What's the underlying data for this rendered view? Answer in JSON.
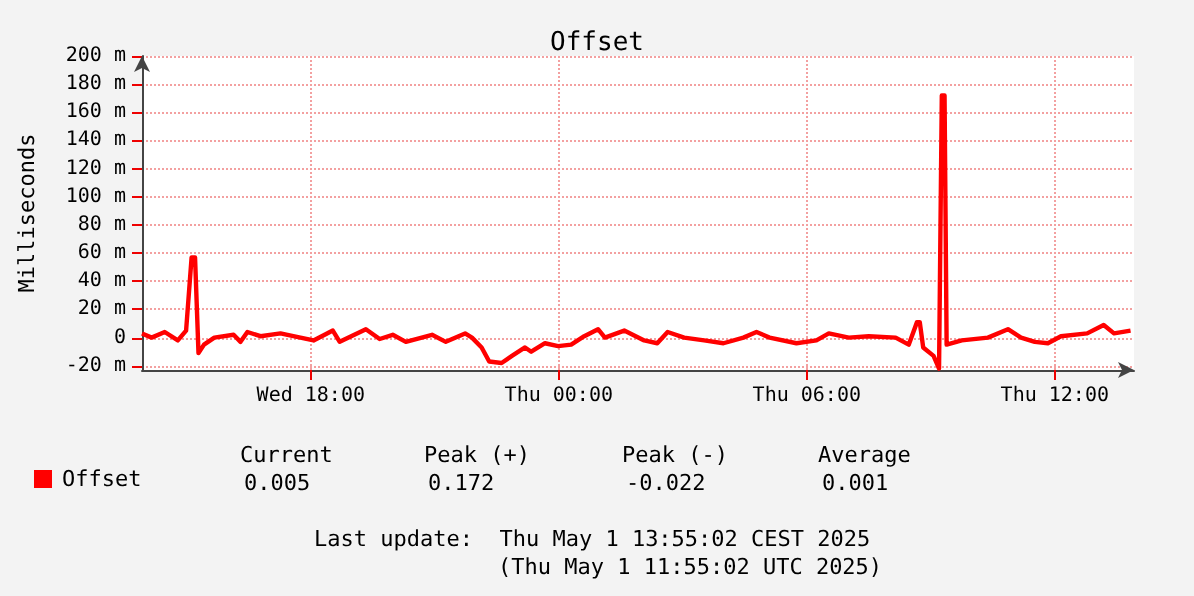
{
  "chart_data": {
    "type": "line",
    "title": "Offset",
    "ylabel": "Milliseconds",
    "x": [
      "2025-04-30T13:55",
      "2025-04-30T14:09",
      "2025-04-30T14:28",
      "2025-04-30T14:47",
      "2025-04-30T14:59",
      "2025-04-30T15:07",
      "2025-04-30T15:12",
      "2025-04-30T15:17",
      "2025-04-30T15:25",
      "2025-04-30T15:40",
      "2025-04-30T16:08",
      "2025-04-30T16:18",
      "2025-04-30T16:28",
      "2025-04-30T16:47",
      "2025-04-30T17:16",
      "2025-04-30T17:45",
      "2025-04-30T18:04",
      "2025-04-30T18:32",
      "2025-04-30T18:42",
      "2025-04-30T19:20",
      "2025-04-30T19:40",
      "2025-04-30T19:59",
      "2025-04-30T20:18",
      "2025-04-30T20:56",
      "2025-04-30T21:16",
      "2025-04-30T21:44",
      "2025-04-30T21:54",
      "2025-04-30T22:08",
      "2025-04-30T22:19",
      "2025-04-30T22:37",
      "2025-04-30T22:52",
      "2025-04-30T23:11",
      "2025-04-30T23:20",
      "2025-04-30T23:40",
      "2025-04-30T23:59",
      "2025-05-01T00:18",
      "2025-05-01T00:37",
      "2025-05-01T00:57",
      "2025-05-01T01:07",
      "2025-05-01T01:35",
      "2025-05-01T02:04",
      "2025-05-01T02:23",
      "2025-05-01T02:38",
      "2025-05-01T03:02",
      "2025-05-01T03:31",
      "2025-05-01T03:59",
      "2025-05-01T04:28",
      "2025-05-01T04:47",
      "2025-05-01T05:06",
      "2025-05-01T05:45",
      "2025-05-01T06:14",
      "2025-05-01T06:32",
      "2025-05-01T07:01",
      "2025-05-01T07:30",
      "2025-05-01T08:09",
      "2025-05-01T08:28",
      "2025-05-01T08:40",
      "2025-05-01T08:44",
      "2025-05-01T08:49",
      "2025-05-01T09:04",
      "2025-05-01T09:12",
      "2025-05-01T09:16",
      "2025-05-01T09:20",
      "2025-05-01T09:23",
      "2025-05-01T09:45",
      "2025-05-01T10:23",
      "2025-05-01T10:52",
      "2025-05-01T11:11",
      "2025-05-01T11:31",
      "2025-05-01T11:50",
      "2025-05-01T12:09",
      "2025-05-01T12:47",
      "2025-05-01T13:11",
      "2025-05-01T13:26",
      "2025-05-01T13:50"
    ],
    "series": [
      {
        "name": "Offset",
        "color": "#ff0000",
        "values": [
          3,
          0,
          4,
          -2,
          5,
          57,
          57,
          -11,
          -5,
          0,
          2,
          -3,
          4,
          1,
          3,
          0,
          -2,
          5,
          -3,
          6,
          -1,
          2,
          -3,
          2,
          -3,
          3,
          0,
          -7,
          -17,
          -18,
          -13,
          -7,
          -10,
          -4,
          -6,
          -5,
          1,
          6,
          0,
          5,
          -2,
          -4,
          4,
          0,
          -2,
          -4,
          0,
          4,
          0,
          -4,
          -2,
          3,
          0,
          1,
          0,
          -5,
          11,
          11,
          -7,
          -13,
          -22,
          172,
          172,
          -5,
          -2,
          0,
          6,
          0,
          -3,
          -4,
          1,
          3,
          9,
          3,
          5
        ]
      }
    ],
    "xlim": [
      "2025-04-30T13:55",
      "2025-05-01T13:55"
    ],
    "xticks": [
      {
        "value": "2025-04-30T18:00",
        "label": "Wed 18:00"
      },
      {
        "value": "2025-05-01T00:00",
        "label": "Thu 00:00"
      },
      {
        "value": "2025-05-01T06:00",
        "label": "Thu 06:00"
      },
      {
        "value": "2025-05-01T12:00",
        "label": "Thu 12:00"
      }
    ],
    "ylim": [
      -23,
      200
    ],
    "yticks": [
      {
        "value": -20,
        "label": "-20 m"
      },
      0,
      {
        "value": 20,
        "label": "20 m"
      },
      {
        "value": 40,
        "label": "40 m"
      },
      {
        "value": 60,
        "label": "60 m"
      },
      {
        "value": 80,
        "label": "80 m"
      },
      {
        "value": 100,
        "label": "100 m"
      },
      {
        "value": 120,
        "label": "120 m"
      },
      {
        "value": 140,
        "label": "140 m"
      },
      {
        "value": 160,
        "label": "160 m"
      },
      {
        "value": 180,
        "label": "180 m"
      },
      {
        "value": 200,
        "label": "200 m"
      }
    ],
    "grid": true,
    "legend": "bottom left",
    "marker": "none",
    "line_style": "solid",
    "annotations": [
      "Current",
      "Peak (+)",
      "Peak (-)",
      "Average",
      "0.005",
      "0.172",
      "-0.022",
      "0.001",
      "Last update:  Thu May 1 13:55:02 CEST 2025",
      "(Thu May 1 11:55:02 UTC 2025)"
    ]
  }
}
